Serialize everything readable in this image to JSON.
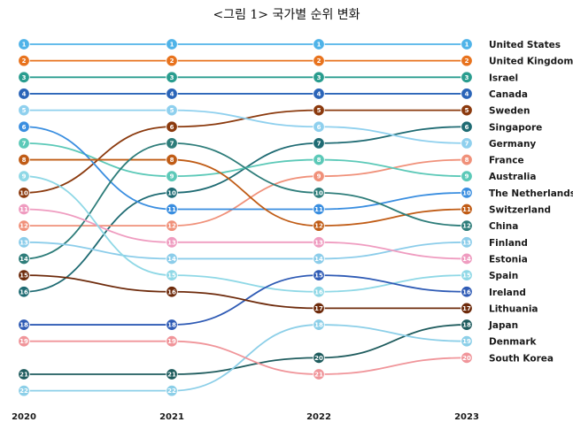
{
  "title": "<그림 1> 국가별 순위 변화",
  "chart_data": {
    "type": "line",
    "title": "<그림 1> 국가별 순위 변화",
    "x": [
      "2020",
      "2021",
      "2022",
      "2023"
    ],
    "y_inverted": true,
    "ylim": [
      1,
      22
    ],
    "grid": false,
    "legend": "labels at right end of each line",
    "series": [
      {
        "name": "United States",
        "values": [
          1,
          1,
          1,
          1
        ],
        "color": "#4fb3e8"
      },
      {
        "name": "United Kingdom",
        "values": [
          2,
          2,
          2,
          2
        ],
        "color": "#e8731e"
      },
      {
        "name": "Israel",
        "values": [
          3,
          3,
          3,
          3
        ],
        "color": "#2a9d8f"
      },
      {
        "name": "Canada",
        "values": [
          4,
          4,
          4,
          4
        ],
        "color": "#2a64b8"
      },
      {
        "name": "Sweden",
        "values": [
          10,
          6,
          5,
          5
        ],
        "color": "#8b3a0e"
      },
      {
        "name": "Singapore",
        "values": [
          16,
          10,
          7,
          6
        ],
        "color": "#1f6b73"
      },
      {
        "name": "Germany",
        "values": [
          5,
          5,
          6,
          7
        ],
        "color": "#8fd0ee"
      },
      {
        "name": "France",
        "values": [
          12,
          12,
          9,
          8
        ],
        "color": "#f0917a"
      },
      {
        "name": "Australia",
        "values": [
          7,
          9,
          8,
          9
        ],
        "color": "#5cc9b8"
      },
      {
        "name": "The Netherlands",
        "values": [
          6,
          11,
          11,
          10
        ],
        "color": "#3a8ee0"
      },
      {
        "name": "Switzerland",
        "values": [
          8,
          8,
          12,
          11
        ],
        "color": "#c05c16"
      },
      {
        "name": "China",
        "values": [
          14,
          7,
          10,
          12
        ],
        "color": "#2e7d7a"
      },
      {
        "name": "Finland",
        "values": [
          13,
          14,
          14,
          13
        ],
        "color": "#8ccdea"
      },
      {
        "name": "Estonia",
        "values": [
          11,
          13,
          13,
          14
        ],
        "color": "#ef9cc0"
      },
      {
        "name": "Spain",
        "values": [
          9,
          15,
          16,
          15
        ],
        "color": "#8fd8e6"
      },
      {
        "name": "Ireland",
        "values": [
          18,
          18,
          15,
          16
        ],
        "color": "#2f5bb5"
      },
      {
        "name": "Lithuania",
        "values": [
          15,
          16,
          17,
          17
        ],
        "color": "#6e2b0c"
      },
      {
        "name": "Japan",
        "values": [
          21,
          21,
          20,
          18
        ],
        "color": "#1f5c5e"
      },
      {
        "name": "Denmark",
        "values": [
          22,
          22,
          18,
          19
        ],
        "color": "#8ccfe8"
      },
      {
        "name": "South Korea",
        "values": [
          19,
          19,
          21,
          20
        ],
        "color": "#f0959a"
      }
    ]
  }
}
